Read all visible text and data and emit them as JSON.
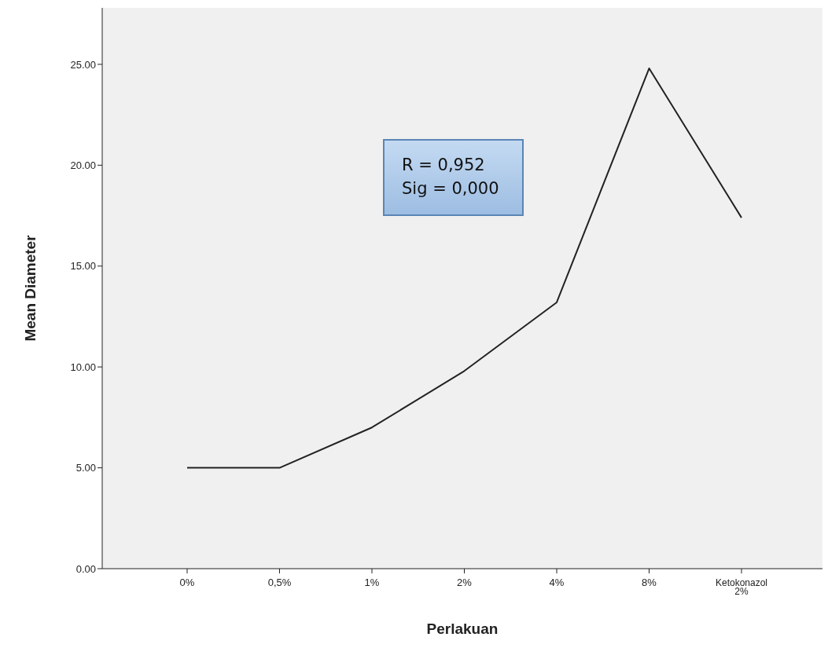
{
  "chart_data": {
    "type": "line",
    "xlabel": "Perlakuan",
    "ylabel": "Mean Diameter",
    "categories": [
      "0%",
      "0,5%",
      "1%",
      "2%",
      "4%",
      "8%",
      "Ketokonazol 2%"
    ],
    "values": [
      5.0,
      5.0,
      7.0,
      9.8,
      13.2,
      24.8,
      17.4
    ],
    "color": "#222222",
    "marker": "none",
    "line_style": "solid",
    "grid": false,
    "legend": false,
    "ylim": [
      0,
      27.8
    ],
    "yticks": [
      {
        "value": 0,
        "label": "0.00"
      },
      {
        "value": 5,
        "label": "5.00"
      },
      {
        "value": 10,
        "label": "10.00"
      },
      {
        "value": 15,
        "label": "15.00"
      },
      {
        "value": 20,
        "label": "20.00"
      },
      {
        "value": 25,
        "label": "25.00"
      }
    ],
    "annotations": [
      "R = 0,952",
      "Sig = 0,000"
    ]
  }
}
